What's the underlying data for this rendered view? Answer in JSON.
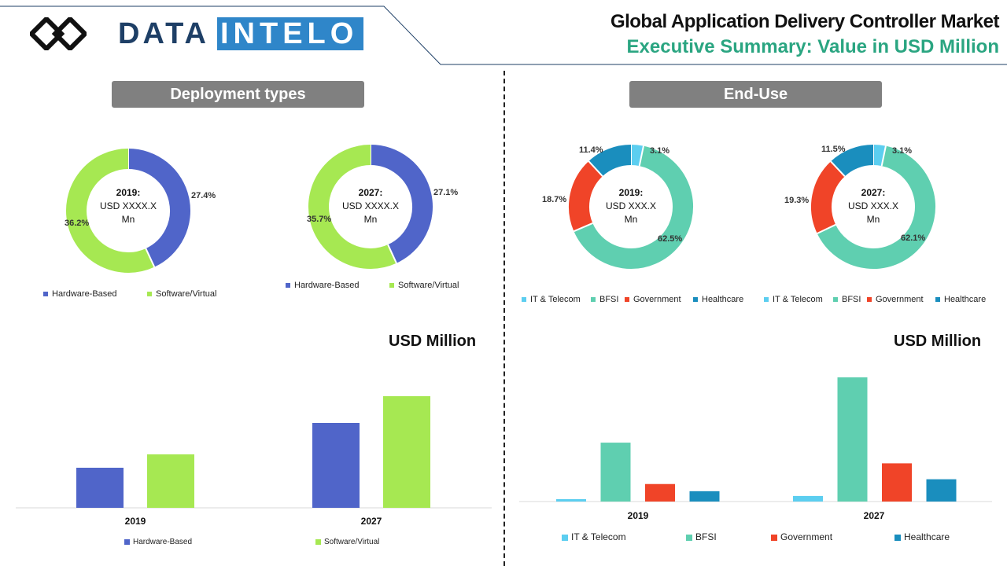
{
  "brand": {
    "left": "DATA",
    "right": "INTELO",
    "dark": "#1e3f66",
    "blue": "#2f86c9"
  },
  "header": {
    "title": "Global Application Delivery Controller Market",
    "subtitle": "Executive Summary: Value in USD Million"
  },
  "colors": {
    "pill_bg": "#808080",
    "subtitle": "#2aa581",
    "hardware": "#5065c9",
    "software": "#a6e852",
    "it_telecom": "#5ccef0",
    "bfsi": "#5fcfb0",
    "government": "#f04428",
    "healthcare": "#1a8ebe"
  },
  "deployment": {
    "pill": "Deployment types",
    "donut_2019": {
      "center": [
        "2019:",
        "USD XXXX.X",
        "Mn"
      ],
      "labels": [
        "27.4%",
        "36.2%"
      ]
    },
    "donut_2027": {
      "center": [
        "2027:",
        "USD XXXX.X",
        "Mn"
      ],
      "labels": [
        "27.1%",
        "35.7%"
      ]
    },
    "legend": [
      "Hardware-Based",
      "Software/Virtual"
    ]
  },
  "enduse": {
    "pill": "End-Use",
    "donut_2019": {
      "center": [
        "2019:",
        "USD XXX.X",
        "Mn"
      ],
      "labels": [
        "3.1%",
        "62.5%",
        "18.7%",
        "11.4%"
      ]
    },
    "donut_2027": {
      "center": [
        "2027:",
        "USD XXX.X",
        "Mn"
      ],
      "labels": [
        "3.1%",
        "62.1%",
        "19.3%",
        "11.5%"
      ]
    },
    "legend": [
      "IT & Telecom",
      "BFSI",
      "Government",
      "Healthcare"
    ]
  },
  "chart_data": [
    {
      "type": "pie",
      "title": "",
      "categories": [
        "Hardware-Based",
        "Software/Virtual"
      ],
      "values": [
        27.4,
        36.2
      ],
      "center_label": "2019: USD XXXX.X Mn"
    },
    {
      "type": "pie",
      "title": "",
      "categories": [
        "Hardware-Based",
        "Software/Virtual"
      ],
      "values": [
        27.1,
        35.7
      ],
      "center_label": "2027: USD XXXX.X Mn"
    },
    {
      "type": "pie",
      "title": "",
      "categories": [
        "IT & Telecom",
        "BFSI",
        "Government",
        "Healthcare"
      ],
      "values": [
        3.1,
        62.5,
        18.7,
        11.4
      ],
      "center_label": "2019: USD XXX.X Mn"
    },
    {
      "type": "pie",
      "title": "",
      "categories": [
        "IT & Telecom",
        "BFSI",
        "Government",
        "Healthcare"
      ],
      "values": [
        3.1,
        62.1,
        19.3,
        11.5
      ],
      "center_label": "2027: USD XXX.X Mn"
    },
    {
      "type": "bar",
      "title": "USD Million",
      "categories": [
        "2019",
        "2027"
      ],
      "series": [
        {
          "name": "Hardware-Based",
          "values": [
            51,
            108
          ]
        },
        {
          "name": "Software/Virtual",
          "values": [
            68,
            142
          ]
        }
      ],
      "ylim": [
        0,
        160
      ],
      "legend": "bottom"
    },
    {
      "type": "bar",
      "title": "USD Million",
      "categories": [
        "2019",
        "2027"
      ],
      "series": [
        {
          "name": "IT & Telecom",
          "values": [
            3,
            7
          ]
        },
        {
          "name": "BFSI",
          "values": [
            74,
            156
          ]
        },
        {
          "name": "Government",
          "values": [
            22,
            48
          ]
        },
        {
          "name": "Healthcare",
          "values": [
            13,
            28
          ]
        }
      ],
      "ylim": [
        0,
        160
      ],
      "legend": "bottom"
    }
  ]
}
